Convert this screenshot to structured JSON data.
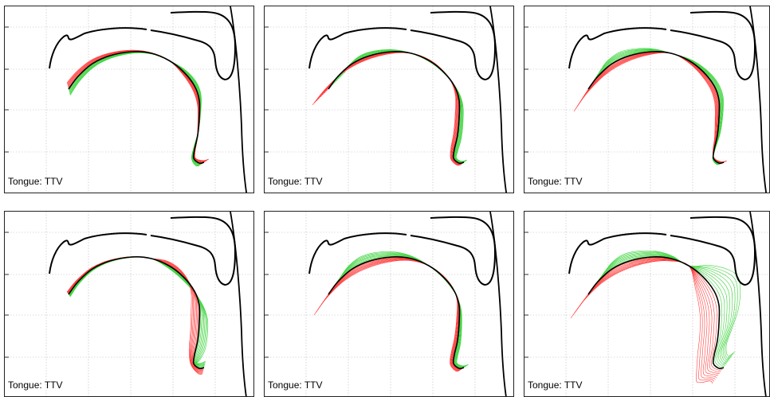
{
  "panels": [
    {
      "id": "p1",
      "label": "Tongue: TTV"
    },
    {
      "id": "p2",
      "label": "Tongue: TTV"
    },
    {
      "id": "p3",
      "label": "Tongue: TTV"
    },
    {
      "id": "p4",
      "label": "Tongue: TTV"
    },
    {
      "id": "p5",
      "label": "Tongue: TTV"
    },
    {
      "id": "p6",
      "label": "Tongue: TTV"
    }
  ],
  "colors": {
    "neutral_contour": "#000000",
    "positive_deviation": "#ff3b3b",
    "negative_deviation": "#3cd33c",
    "grid": "#bbbbbb"
  }
}
